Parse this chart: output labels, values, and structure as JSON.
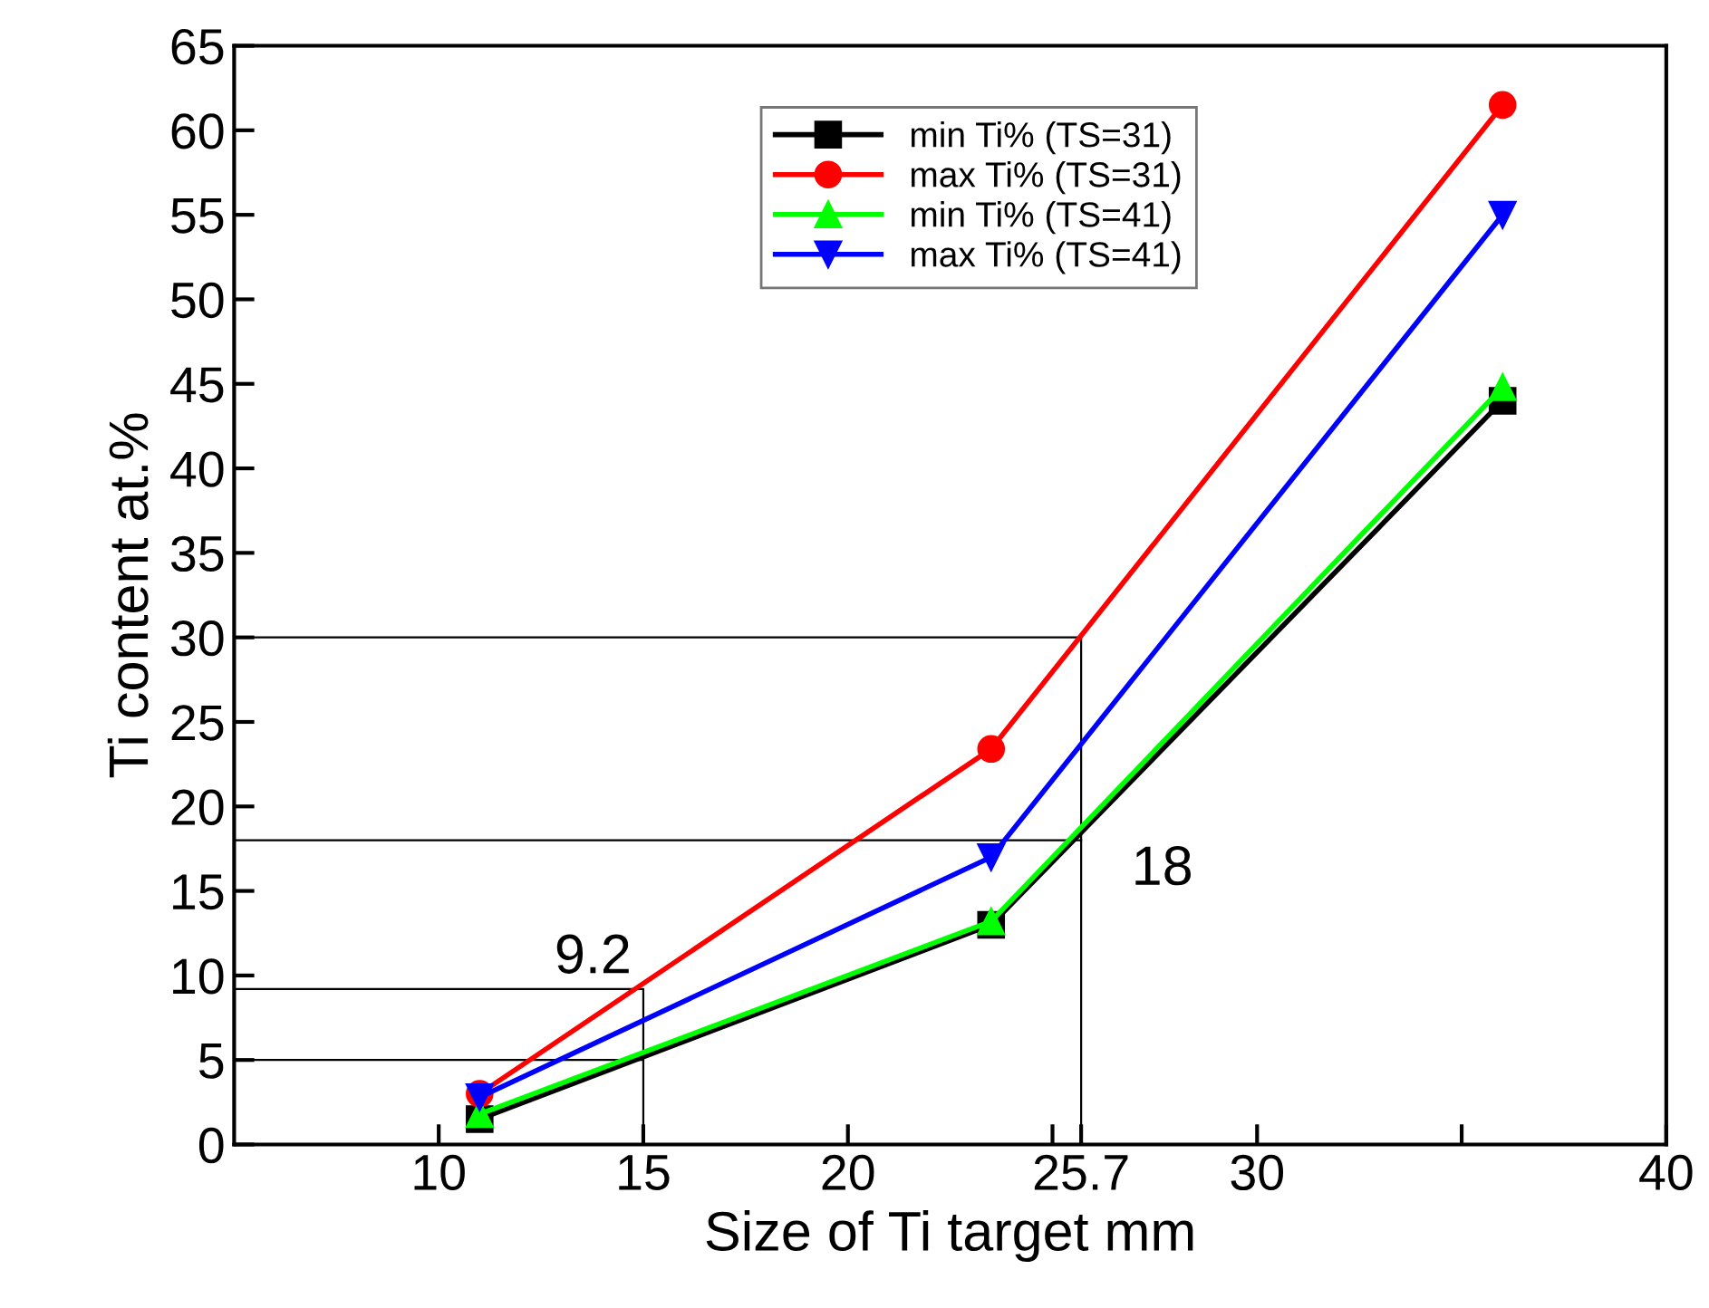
{
  "chart_data": {
    "type": "line",
    "xlabel": "Size of Ti target mm",
    "ylabel": "Ti content at.%",
    "x": [
      11,
      23.5,
      36
    ],
    "series": [
      {
        "name": "min Ti% (TS=31)",
        "color": "#000000",
        "marker": "square",
        "values": [
          1.5,
          13,
          44
        ]
      },
      {
        "name": "max Ti% (TS=31)",
        "color": "#ff0000",
        "marker": "circle",
        "values": [
          3,
          23.4,
          61.5
        ]
      },
      {
        "name": "min Ti% (TS=41)",
        "color": "#00ff00",
        "marker": "triangle",
        "values": [
          1.8,
          13.2,
          44.8
        ]
      },
      {
        "name": "max Ti% (TS=41)",
        "color": "#0000ff",
        "marker": "triangle_down",
        "values": [
          2.8,
          17,
          55
        ]
      },
      {
        "color": "#000000",
        "marker": "none",
        "x": [
          5,
          15,
          15
        ],
        "values": [
          9.2,
          9.2,
          0
        ]
      },
      {
        "color": "#000000",
        "marker": "none",
        "x": [
          5,
          15
        ],
        "values": [
          5,
          5
        ]
      },
      {
        "color": "#000000",
        "marker": "none",
        "x": [
          5,
          25.7
        ],
        "values": [
          18,
          18
        ]
      },
      {
        "color": "#000000",
        "marker": "none",
        "x": [
          5,
          25.7,
          25.7
        ],
        "values": [
          30,
          30,
          0
        ]
      }
    ],
    "annotations": [
      {
        "text": "9.2",
        "x": 15,
        "y": 9.2
      },
      {
        "text": "18",
        "x": 25.7,
        "y": 18
      }
    ],
    "xlim": [
      5,
      40
    ],
    "xticks": [
      10,
      15,
      20,
      {
        "value": 25,
        "label": null
      },
      {
        "value": 25.7,
        "label": "25.7"
      },
      30,
      {
        "value": 35,
        "label": null
      },
      40
    ],
    "ylim": [
      0,
      65
    ],
    "yticks": [
      0,
      5,
      10,
      15,
      20,
      25,
      30,
      35,
      40,
      45,
      50,
      55,
      60,
      65
    ],
    "grid": false,
    "legend": "top",
    "line_style": "solid"
  }
}
